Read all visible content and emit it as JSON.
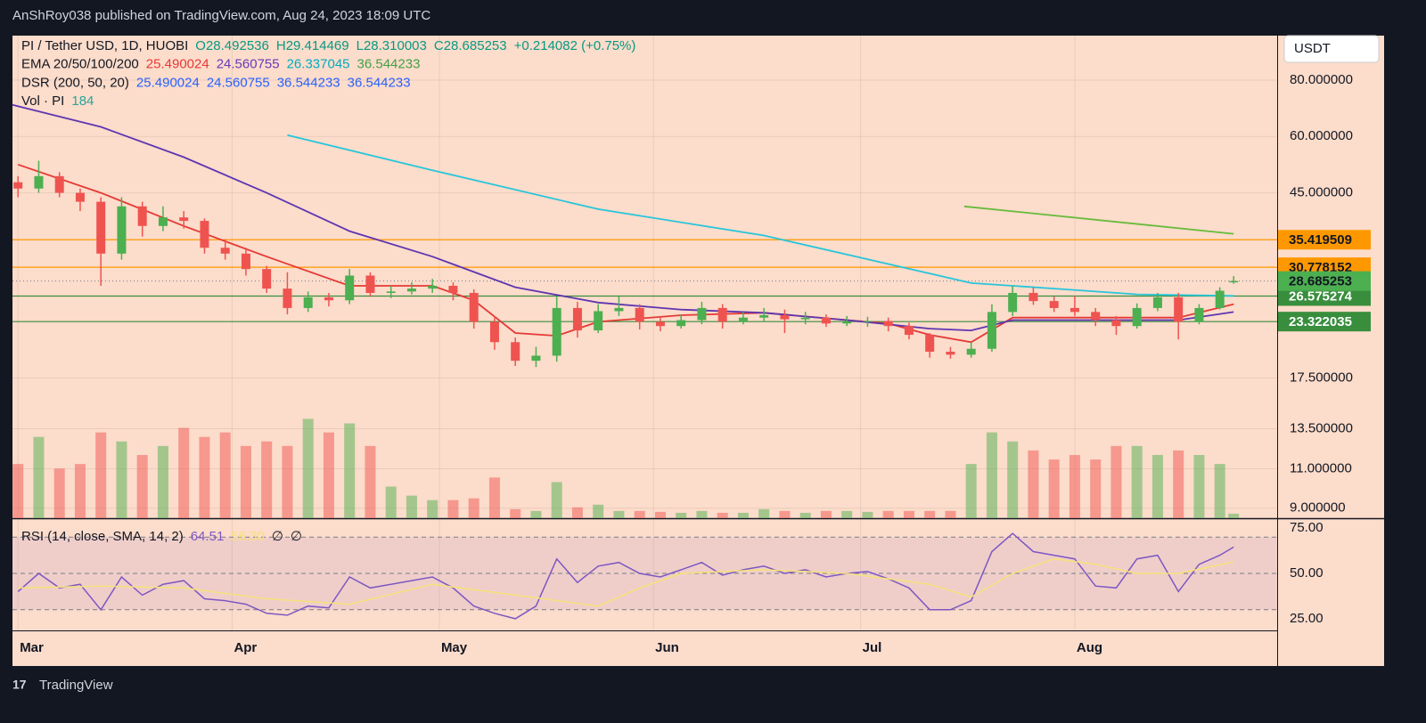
{
  "header": {
    "publisher": "AnShRoy038 published on TradingView.com, Aug 24, 2023 18:09 UTC"
  },
  "footer": {
    "brand": "TradingView"
  },
  "currency": "USDT",
  "legend": [
    {
      "name": "PI / Tether USD, 1D, HUOBI",
      "values": [
        "O28.492536",
        "H29.414469",
        "L28.310003",
        "C28.685253",
        "+0.214082 (+0.75%)"
      ],
      "colors": [
        "#089981",
        "#089981",
        "#089981",
        "#089981",
        "#089981"
      ]
    },
    {
      "name": "EMA 20/50/100/200",
      "values": [
        "25.490024",
        "24.560755",
        "26.337045",
        "36.544233"
      ],
      "colors": [
        "#e53935",
        "#673ab7",
        "#00acc1",
        "#43a047"
      ]
    },
    {
      "name": "DSR (200, 50, 20)",
      "values": [
        "25.490024",
        "24.560755",
        "36.544233",
        "36.544233"
      ],
      "colors": [
        "#2962ff",
        "#2962ff",
        "#2962ff",
        "#2962ff"
      ]
    },
    {
      "name": "Vol · PI",
      "values": [
        "184"
      ],
      "colors": [
        "#26a69a"
      ]
    }
  ],
  "rsi_legend": {
    "name": "RSI (14, close, SMA, 14, 2)",
    "values": [
      "64.51",
      "56.30",
      "∅",
      "∅"
    ],
    "colors": [
      "#7e57c2",
      "#f5e27a",
      "#131722",
      "#131722"
    ]
  },
  "chart_data": [
    {
      "type": "candlestick",
      "log_scale": true,
      "grid": true,
      "up_color": "#4caf50",
      "down_color": "#ef5350",
      "xlim": [
        -0.8,
        182.3
      ],
      "xticks": [
        {
          "value": 0,
          "label": "Mar"
        },
        {
          "value": 31,
          "label": "Apr"
        },
        {
          "value": 61,
          "label": "May"
        },
        {
          "value": 92,
          "label": "Jun"
        },
        {
          "value": 122,
          "label": "Jul"
        },
        {
          "value": 153,
          "label": "Aug"
        }
      ],
      "ylim": [
        8.55,
        100.4
      ],
      "yticks": [
        {
          "value": 80,
          "label": "80.000000"
        },
        {
          "value": 60,
          "label": "60.000000"
        },
        {
          "value": 45,
          "label": "45.000000"
        },
        {
          "value": 17.5,
          "label": "17.500000"
        },
        {
          "value": 13.5,
          "label": "13.500000"
        },
        {
          "value": 11,
          "label": "11.000000"
        },
        {
          "value": 9,
          "label": "9.000000"
        }
      ],
      "x": [
        0,
        3,
        6,
        9,
        12,
        15,
        18,
        21,
        24,
        27,
        30,
        33,
        36,
        39,
        42,
        45,
        48,
        51,
        54,
        57,
        60,
        63,
        66,
        69,
        72,
        75,
        78,
        81,
        84,
        87,
        90,
        93,
        96,
        99,
        102,
        105,
        108,
        111,
        114,
        117,
        120,
        123,
        126,
        129,
        132,
        135,
        138,
        141,
        144,
        147,
        150,
        153,
        156,
        159,
        162,
        165,
        168,
        171,
        174,
        176
      ],
      "candles": [
        [
          47.5,
          49,
          44,
          46
        ],
        [
          46,
          53,
          45,
          49
        ],
        [
          49,
          50,
          44,
          45
        ],
        [
          45,
          46,
          41,
          43
        ],
        [
          43,
          44,
          28,
          33
        ],
        [
          33,
          44,
          32,
          42
        ],
        [
          42,
          43,
          36,
          38
        ],
        [
          38,
          42,
          37,
          39.7
        ],
        [
          39.7,
          41,
          37.5,
          39
        ],
        [
          39,
          39.5,
          33,
          34
        ],
        [
          34,
          35.5,
          32,
          33
        ],
        [
          33,
          34,
          29.5,
          30.5
        ],
        [
          30.5,
          31,
          27,
          27.6
        ],
        [
          27.6,
          30,
          24.2,
          25
        ],
        [
          25,
          27.2,
          24.5,
          26.4
        ],
        [
          26.4,
          27,
          25.2,
          26
        ],
        [
          26,
          30.5,
          25.5,
          29.5
        ],
        [
          29.5,
          30,
          26.5,
          27
        ],
        [
          27,
          28,
          26.3,
          27.2
        ],
        [
          27.2,
          28.5,
          26.8,
          27.6
        ],
        [
          27.6,
          29,
          27,
          28
        ],
        [
          28,
          28.5,
          26,
          27
        ],
        [
          27,
          27.5,
          22.5,
          23.3
        ],
        [
          23.3,
          24,
          20.2,
          21
        ],
        [
          21,
          21.5,
          18.6,
          19.1
        ],
        [
          19.1,
          20.5,
          18.5,
          19.6
        ],
        [
          19.6,
          26.5,
          19,
          25
        ],
        [
          25,
          25.8,
          21.5,
          22.3
        ],
        [
          22.3,
          25.5,
          22,
          24.6
        ],
        [
          24.6,
          26.5,
          24,
          25
        ],
        [
          25,
          25.5,
          22.4,
          23.3
        ],
        [
          23.3,
          24,
          22.2,
          22.8
        ],
        [
          22.8,
          24.2,
          22.5,
          23.5
        ],
        [
          23.5,
          25.8,
          23,
          25
        ],
        [
          25,
          25.5,
          22.5,
          23.3
        ],
        [
          23.3,
          24.5,
          23,
          23.8
        ],
        [
          23.8,
          25,
          23.4,
          24.1
        ],
        [
          24.1,
          24.8,
          22,
          23.6
        ],
        [
          23.6,
          24.5,
          23,
          23.8
        ],
        [
          23.8,
          24.2,
          22.7,
          23.1
        ],
        [
          23.1,
          24,
          22.8,
          23.3
        ],
        [
          23.3,
          23.9,
          22.7,
          23.4
        ],
        [
          23.4,
          23.8,
          22.2,
          22.8
        ],
        [
          22.8,
          23.2,
          21.3,
          21.8
        ],
        [
          21.8,
          22,
          19.4,
          20
        ],
        [
          20,
          20.5,
          19.3,
          19.7
        ],
        [
          19.7,
          21,
          19.4,
          20.3
        ],
        [
          20.3,
          25.5,
          20,
          24.5
        ],
        [
          24.5,
          28,
          24,
          27
        ],
        [
          27,
          27.8,
          25.4,
          25.9
        ],
        [
          25.9,
          26.5,
          24.5,
          25
        ],
        [
          25,
          26.6,
          24,
          24.5
        ],
        [
          24.5,
          25,
          22.8,
          23.5
        ],
        [
          23.5,
          24,
          21.8,
          22.8
        ],
        [
          22.8,
          25.6,
          22.5,
          25
        ],
        [
          25,
          27,
          24.6,
          26.4
        ],
        [
          26.4,
          27,
          21.3,
          23.3
        ],
        [
          23.3,
          25.5,
          23,
          25
        ],
        [
          25,
          27.8,
          24.8,
          27.3
        ],
        [
          28.492536,
          29.414469,
          28.310003,
          28.685253
        ]
      ],
      "volume_lim": [
        0,
        140
      ],
      "volume": [
        60,
        90,
        55,
        60,
        95,
        85,
        70,
        80,
        100,
        90,
        95,
        80,
        85,
        80,
        110,
        95,
        105,
        80,
        35,
        25,
        20,
        20,
        22,
        45,
        10,
        8,
        40,
        12,
        15,
        8,
        8,
        7,
        6,
        8,
        6,
        6,
        10,
        8,
        6,
        8,
        8,
        7,
        8,
        8,
        8,
        8,
        60,
        95,
        85,
        75,
        65,
        70,
        65,
        80,
        80,
        70,
        75,
        70,
        60,
        5
      ],
      "lines": [
        {
          "color": "#e53935",
          "x": [
            0,
            12,
            24,
            36,
            48,
            60,
            66,
            72,
            78,
            84,
            96,
            108,
            120,
            126,
            132,
            138,
            144,
            156,
            168,
            176
          ],
          "values": [
            52,
            45,
            38,
            32.5,
            28,
            28,
            26,
            22,
            21.7,
            23.3,
            24.1,
            24.4,
            23.5,
            23.1,
            21.8,
            21,
            23.8,
            23.8,
            23.8,
            25.5
          ]
        },
        {
          "color": "#5e35b1",
          "x": [
            -0.8,
            12,
            24,
            36,
            48,
            60,
            72,
            84,
            96,
            108,
            120,
            132,
            138,
            144,
            156,
            168,
            176
          ],
          "values": [
            70.5,
            63,
            54,
            45,
            37,
            32.5,
            27.8,
            25.7,
            24.8,
            24.4,
            23.5,
            22.5,
            22.3,
            23.5,
            23.5,
            23.5,
            24.5
          ]
        },
        {
          "color": "#26c6da",
          "x": [
            39,
            60,
            84,
            108,
            126,
            138,
            150,
            162,
            176
          ],
          "values": [
            60.4,
            50.5,
            41.4,
            36.2,
            31.3,
            28.4,
            27.6,
            26.8,
            26.6
          ]
        },
        {
          "color": "#66bb3a",
          "x": [
            137,
            176
          ],
          "values": [
            42,
            36.5
          ]
        }
      ],
      "levels": [
        {
          "value": 35.419509,
          "color": "#ff9800"
        },
        {
          "value": 30.778152,
          "color": "#ff9800"
        },
        {
          "value": 26.575274,
          "color": "#388e3c"
        },
        {
          "value": 23.322035,
          "color": "#388e3c"
        }
      ],
      "last_price": 28.685253,
      "last_color": "#4caf50"
    },
    {
      "type": "line",
      "ylim": [
        18.6,
        79.9
      ],
      "yticks": [
        {
          "value": 75,
          "label": "75.00"
        },
        {
          "value": 50,
          "label": "50.00"
        },
        {
          "value": 25,
          "label": "25.00"
        }
      ],
      "hlines": [
        70,
        50,
        30
      ],
      "band": [
        30,
        70
      ],
      "series": [
        {
          "color": "#7e57c2",
          "x": [
            0,
            3,
            6,
            9,
            12,
            15,
            18,
            21,
            24,
            27,
            30,
            33,
            36,
            39,
            42,
            45,
            48,
            51,
            54,
            57,
            60,
            63,
            66,
            69,
            72,
            75,
            78,
            81,
            84,
            87,
            90,
            93,
            96,
            99,
            102,
            105,
            108,
            111,
            114,
            117,
            120,
            123,
            126,
            129,
            132,
            135,
            138,
            141,
            144,
            147,
            150,
            153,
            156,
            159,
            162,
            165,
            168,
            171,
            174,
            176
          ],
          "values": [
            40,
            50,
            42,
            44,
            30,
            48,
            38,
            44,
            46,
            36,
            35,
            33,
            28,
            27,
            32,
            31,
            48,
            42,
            44,
            46,
            48,
            42,
            32,
            28,
            25,
            32,
            58,
            45,
            54,
            56,
            50,
            48,
            52,
            56,
            49,
            52,
            54,
            50,
            52,
            48,
            50,
            51,
            47,
            42,
            30,
            30,
            35,
            62,
            72,
            62,
            60,
            58,
            43,
            42,
            58,
            60,
            40,
            55,
            60,
            64.51
          ]
        },
        {
          "color": "#f5e27a",
          "x": [
            0,
            12,
            24,
            36,
            48,
            60,
            72,
            84,
            90,
            96,
            108,
            120,
            132,
            138,
            144,
            150,
            156,
            162,
            168,
            176
          ],
          "values": [
            42,
            43,
            42,
            36,
            33,
            44,
            38,
            32,
            42,
            50,
            52,
            50,
            44,
            37,
            50,
            58,
            55,
            50,
            50,
            56.3
          ]
        }
      ]
    }
  ]
}
